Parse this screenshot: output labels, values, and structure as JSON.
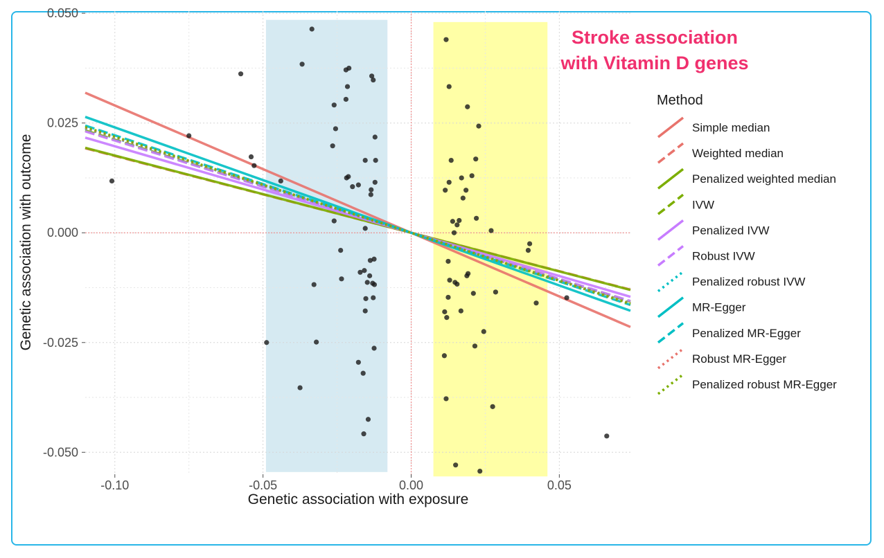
{
  "title_line1": "Stroke association",
  "title_line2": "with Vitamin D genes",
  "chart_data": {
    "type": "scatter",
    "xlabel": "Genetic association with exposure",
    "ylabel": "Genetic association with outcome",
    "xlim": [
      -0.11,
      0.074
    ],
    "ylim": [
      -0.055,
      0.0505
    ],
    "x_ticks": [
      -0.1,
      -0.05,
      0.0,
      0.05
    ],
    "x_tick_labels": [
      "-0.10",
      "-0.05",
      "0.00",
      "0.05"
    ],
    "y_ticks": [
      -0.05,
      -0.025,
      0.0,
      0.025,
      0.05
    ],
    "y_tick_labels": [
      "-0.050",
      "-0.025",
      "0.000",
      "0.025",
      "0.050"
    ],
    "grid": true,
    "highlight_regions": [
      {
        "name": "negative-exposure-band",
        "x": [
          -0.049,
          -0.008
        ],
        "y": [
          -0.0545,
          0.0485
        ],
        "color": "#d6eaf2"
      },
      {
        "name": "positive-exposure-band",
        "x": [
          0.0075,
          0.046
        ],
        "y": [
          -0.0555,
          0.048
        ],
        "color": "#ffffa6"
      }
    ],
    "points": [
      [
        -0.101,
        0.0118
      ],
      [
        -0.075,
        0.0221
      ],
      [
        -0.0575,
        0.0362
      ],
      [
        -0.054,
        0.0173
      ],
      [
        -0.053,
        0.0153
      ],
      [
        -0.044,
        0.0118
      ],
      [
        -0.0375,
        -0.0353
      ],
      [
        -0.0368,
        0.0384
      ],
      [
        -0.0335,
        0.0464
      ],
      [
        -0.0328,
        -0.0118
      ],
      [
        -0.032,
        -0.0249
      ],
      [
        -0.0488,
        -0.025
      ],
      [
        -0.026,
        0.0291
      ],
      [
        -0.0265,
        0.0198
      ],
      [
        -0.0255,
        0.0237
      ],
      [
        -0.026,
        0.0027
      ],
      [
        -0.0238,
        -0.004
      ],
      [
        -0.0235,
        -0.0105
      ],
      [
        -0.022,
        0.0371
      ],
      [
        -0.021,
        0.0375
      ],
      [
        -0.0215,
        0.0333
      ],
      [
        -0.022,
        0.0304
      ],
      [
        -0.0218,
        0.0125
      ],
      [
        -0.0212,
        0.0128
      ],
      [
        -0.0198,
        0.0105
      ],
      [
        -0.0178,
        0.0109
      ],
      [
        -0.0178,
        -0.0295
      ],
      [
        -0.0172,
        -0.009
      ],
      [
        -0.0162,
        -0.032
      ],
      [
        -0.0158,
        -0.0086
      ],
      [
        -0.0155,
        -0.0178
      ],
      [
        -0.0153,
        -0.015
      ],
      [
        -0.0155,
        0.001
      ],
      [
        -0.0155,
        0.0165
      ],
      [
        -0.0148,
        -0.0113
      ],
      [
        -0.0145,
        -0.0425
      ],
      [
        -0.014,
        -0.0098
      ],
      [
        -0.0138,
        -0.0063
      ],
      [
        -0.0136,
        0.0087
      ],
      [
        -0.0135,
        0.0098
      ],
      [
        -0.0133,
        0.0357
      ],
      [
        -0.0128,
        0.0348
      ],
      [
        -0.0125,
        -0.006
      ],
      [
        -0.0124,
        -0.0118
      ],
      [
        -0.0122,
        0.0218
      ],
      [
        -0.0122,
        0.0115
      ],
      [
        -0.012,
        0.0165
      ],
      [
        -0.0125,
        -0.0263
      ],
      [
        -0.013,
        -0.0115
      ],
      [
        -0.016,
        -0.0458
      ],
      [
        -0.0128,
        -0.0148
      ],
      [
        0.0118,
        0.044
      ],
      [
        0.0115,
        0.0097
      ],
      [
        0.0113,
        -0.018
      ],
      [
        0.0112,
        -0.028
      ],
      [
        0.0118,
        -0.0378
      ],
      [
        0.0125,
        -0.0065
      ],
      [
        0.0128,
        0.0333
      ],
      [
        0.0135,
        0.0165
      ],
      [
        0.0128,
        0.0115
      ],
      [
        0.013,
        -0.0108
      ],
      [
        0.0125,
        -0.0147
      ],
      [
        0.012,
        -0.0193
      ],
      [
        0.014,
        0.0026
      ],
      [
        0.0145,
        0.0
      ],
      [
        0.0148,
        -0.0113
      ],
      [
        0.015,
        -0.0529
      ],
      [
        0.0155,
        0.0018
      ],
      [
        0.0155,
        -0.0117
      ],
      [
        0.0162,
        0.0028
      ],
      [
        0.0168,
        -0.0178
      ],
      [
        0.017,
        0.0125
      ],
      [
        0.0175,
        0.0079
      ],
      [
        0.0185,
        0.0097
      ],
      [
        0.0188,
        -0.0098
      ],
      [
        0.019,
        0.0287
      ],
      [
        0.0192,
        -0.0093
      ],
      [
        0.0205,
        0.013
      ],
      [
        0.021,
        -0.0138
      ],
      [
        0.0215,
        -0.0258
      ],
      [
        0.0218,
        0.0168
      ],
      [
        0.022,
        0.0033
      ],
      [
        0.0228,
        0.0243
      ],
      [
        0.0232,
        -0.0543
      ],
      [
        0.0245,
        -0.0225
      ],
      [
        0.027,
        0.0005
      ],
      [
        0.0275,
        -0.0396
      ],
      [
        0.0285,
        -0.0135
      ],
      [
        0.0395,
        -0.004
      ],
      [
        0.04,
        -0.0025
      ],
      [
        0.0422,
        -0.016
      ],
      [
        0.0525,
        -0.0148
      ],
      [
        0.066,
        -0.0463
      ]
    ],
    "legend_title": "Method",
    "series": [
      {
        "name": "Simple median",
        "slope": -0.29,
        "color": "#e8736c",
        "style": "solid"
      },
      {
        "name": "Weighted median",
        "slope": -0.175,
        "color": "#e8736c",
        "style": "dashed"
      },
      {
        "name": "Penalized weighted median",
        "slope": -0.176,
        "color": "#7cae00",
        "style": "solid"
      },
      {
        "name": "IVW",
        "slope": -0.212,
        "color": "#7cae00",
        "style": "dashed"
      },
      {
        "name": "Penalized IVW",
        "slope": -0.197,
        "color": "#c77cff",
        "style": "solid"
      },
      {
        "name": "Robust IVW",
        "slope": -0.21,
        "color": "#c77cff",
        "style": "dashed"
      },
      {
        "name": "Penalized robust IVW",
        "slope": -0.216,
        "color": "#00bfc4",
        "style": "dotted"
      },
      {
        "name": "MR-Egger",
        "slope": -0.24,
        "color": "#00bfc4",
        "style": "solid"
      },
      {
        "name": "Penalized MR-Egger",
        "slope": -0.222,
        "color": "#00bfc4",
        "style": "dashed"
      },
      {
        "name": "Robust MR-Egger",
        "slope": -0.217,
        "color": "#e8736c",
        "style": "dotted"
      },
      {
        "name": "Penalized robust MR-Egger",
        "slope": -0.219,
        "color": "#7cae00",
        "style": "dotted"
      }
    ]
  }
}
